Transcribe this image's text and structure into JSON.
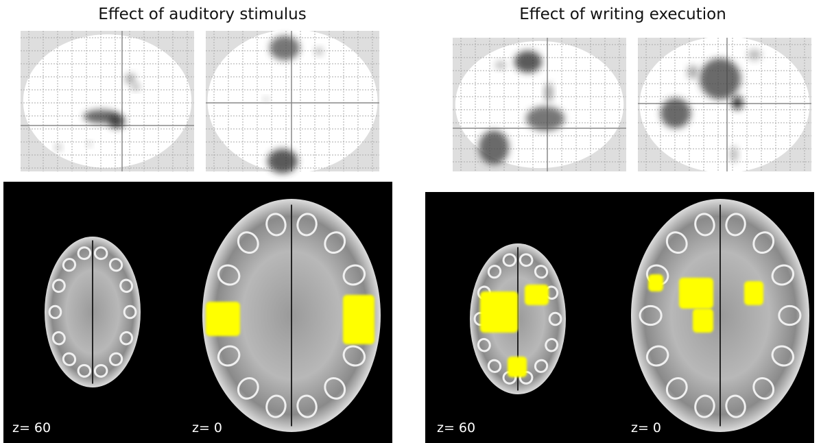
{
  "panels": [
    {
      "title": "Effect of auditory stimulus",
      "slices": [
        {
          "label": "z= 60"
        },
        {
          "label": "z= 0"
        }
      ]
    },
    {
      "title": "Effect of writing execution",
      "slices": [
        {
          "label": "z= 60"
        },
        {
          "label": "z= 0"
        }
      ]
    }
  ]
}
